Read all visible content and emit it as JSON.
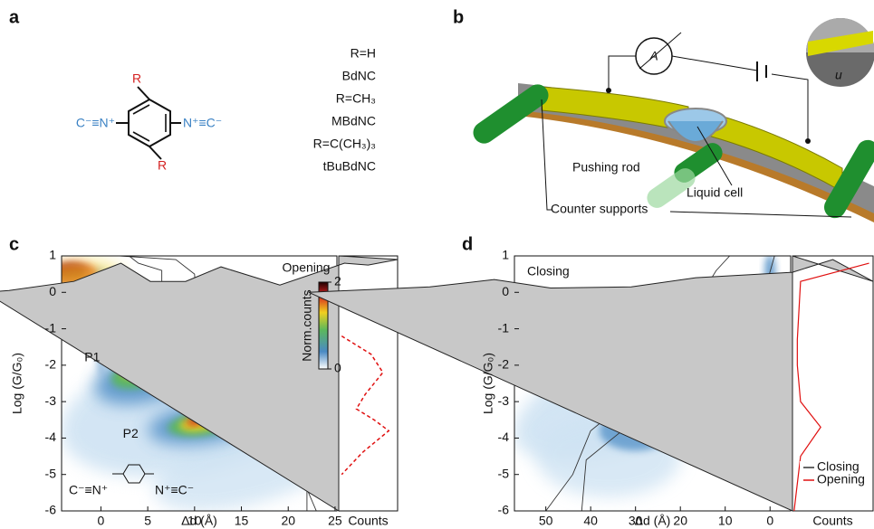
{
  "panel_a": {
    "label": "a",
    "molecule": {
      "substituent_top": "R",
      "substituent_bottom": "R",
      "left_group": "C⁻≡N⁺",
      "right_group": "N⁺≡C⁻"
    },
    "variants": [
      "R=H",
      "BdNC",
      "R=CH₃",
      "MBdNC",
      "R=C(CH₃)₃",
      "tBuBdNC"
    ]
  },
  "panel_b": {
    "label": "b",
    "labels": {
      "meter": "A",
      "gap": "u",
      "pushing_rod": "Pushing rod",
      "liquid_cell": "Liquid cell",
      "counter_supports": "Counter supports"
    }
  },
  "chart_data": [
    {
      "type": "heatmap",
      "panel_label": "c",
      "xlabel": "Δd (Å)",
      "ylabel": "Log (G/G₀)",
      "xlim": [
        -4.2,
        25.2
      ],
      "xticks": [
        0,
        5,
        10,
        15,
        20,
        25
      ],
      "ylim": [
        -6,
        1
      ],
      "yticks": [
        -6,
        -5,
        -4,
        -3,
        -2,
        -1,
        0,
        1
      ],
      "annotations": [
        "P1",
        "P2"
      ],
      "molecule_left": "C⁻≡N⁺",
      "molecule_right": "N⁺≡C⁻",
      "colorbar": {
        "title": "Opening",
        "label": "Norm.counts",
        "lim": [
          0,
          2
        ],
        "ticks": [
          0,
          2
        ]
      },
      "side_xlabel": "Counts"
    },
    {
      "type": "heatmap",
      "panel_label": "d",
      "xlabel": "Δd (Å)",
      "ylabel": "Log (G/G₀)",
      "xlim": [
        57,
        -4.6
      ],
      "xticks": [
        50,
        40,
        30,
        20,
        10,
        0
      ],
      "ylim": [
        -6,
        1
      ],
      "yticks": [
        -6,
        -5,
        -4,
        -3,
        -2,
        -1,
        0,
        1
      ],
      "annotations": [
        "Closing"
      ],
      "series": [
        {
          "name": "Closing",
          "color": "#333333"
        },
        {
          "name": "Opening",
          "color": "#e01010"
        }
      ],
      "legend": "lower right",
      "side_xlabel": "Counts"
    }
  ]
}
